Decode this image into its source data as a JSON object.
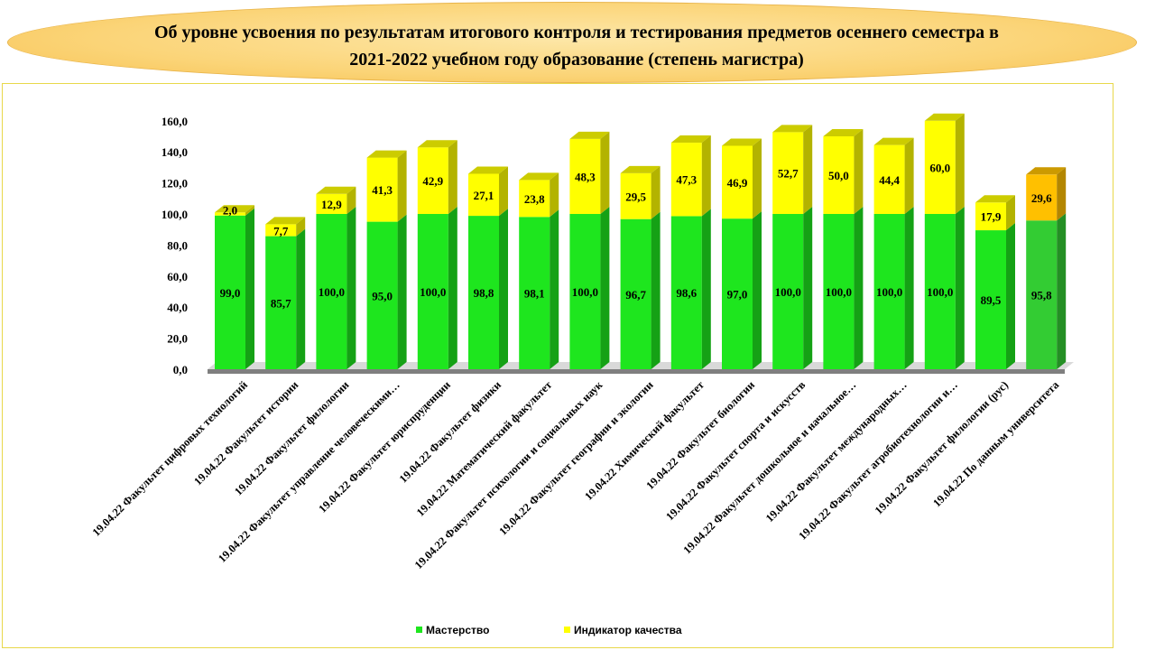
{
  "header": {
    "title_line1": "Об уровне усвоения по результатам итогового контроля и тестирования предметов осеннего семестра в",
    "title_line2": "2021-2022 учебном году образование (степень магистра)"
  },
  "colors": {
    "mastery": "#1ee61e",
    "mastery_total": "#33cc33",
    "quality": "#ffff00",
    "quality_total": "#ffc000",
    "floor": "#7f7f7f"
  },
  "chart_data": {
    "type": "bar",
    "stacked": true,
    "title": "",
    "xlabel": "",
    "ylabel": "",
    "ylim": [
      0,
      160
    ],
    "yticks": [
      "0,0",
      "20,0",
      "40,0",
      "60,0",
      "80,0",
      "100,0",
      "120,0",
      "140,0",
      "160,0"
    ],
    "grid": false,
    "legend_position": "bottom",
    "categories": [
      "19.04.22 Факультет цифровых технологий",
      "19.04.22 Факультет истории",
      "19.04.22 Факультет филологии",
      "19.04.22 Факультет управление человеческими…",
      "19.04.22 Факультет юриспруденции",
      "19.04.22 Факультет физики",
      "19.04.22 Математический факультет",
      "19.04.22 Факультет психологии и социальных наук",
      "19.04.22 Факультет географии и экологии",
      "19.04.22 Химический факультет",
      "19.04.22 Факультет биологии",
      "19.04.22 Факультет спорта и искусств",
      "19.04.22 Факультет дошкольное и начальное…",
      "19.04.22 Факультет международных…",
      "19.04.22 Факультет агробиотехнологии и…",
      "19.04.22 Факультет филологии (рус)",
      "19.04.22 По данным университета"
    ],
    "series": [
      {
        "name": "Мастерство",
        "values": [
          99.0,
          85.7,
          100.0,
          95.0,
          100.0,
          98.8,
          98.1,
          100.0,
          96.7,
          98.6,
          97.0,
          100.0,
          100.0,
          100.0,
          100.0,
          89.5,
          95.8
        ],
        "labels": [
          "99,0",
          "85,7",
          "100,0",
          "95,0",
          "100,0",
          "98,8",
          "98,1",
          "100,0",
          "96,7",
          "98,6",
          "97,0",
          "100,0",
          "100,0",
          "100,0",
          "100,0",
          "89,5",
          "95,8"
        ]
      },
      {
        "name": "Индикатор качества",
        "values": [
          2.0,
          7.7,
          12.9,
          41.3,
          42.9,
          27.1,
          23.8,
          48.3,
          29.5,
          47.3,
          46.9,
          52.7,
          50.0,
          44.4,
          60.0,
          17.9,
          29.6
        ],
        "labels": [
          "2,0",
          "7,7",
          "12,9",
          "41,3",
          "42,9",
          "27,1",
          "23,8",
          "48,3",
          "29,5",
          "47,3",
          "46,9",
          "52,7",
          "50,0",
          "44,4",
          "60,0",
          "17,9",
          "29,6"
        ]
      }
    ]
  }
}
